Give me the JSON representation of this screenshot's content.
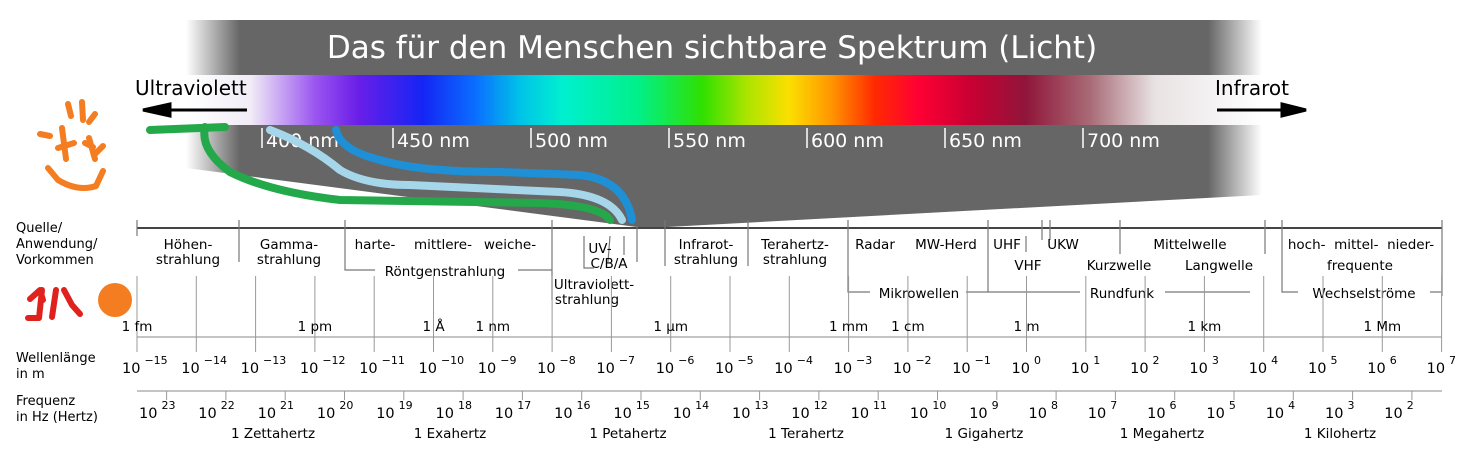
{
  "banner": {
    "title": "Das für den Menschen sichtbare Spektrum (Licht)"
  },
  "ends": {
    "left": "Ultraviolett",
    "right": "Infrarot"
  },
  "nm_ticks": [
    "400 nm",
    "450 nm",
    "500 nm",
    "550 nm",
    "600 nm",
    "650 nm",
    "700 nm"
  ],
  "row_labels": {
    "source": [
      "Quelle/",
      "Anwendung/",
      "Vorkommen"
    ],
    "wavelength": [
      "Wellenlänge",
      "in m"
    ],
    "frequency": [
      "Frequenz",
      "in Hz (Hertz)"
    ]
  },
  "sources": {
    "hoehen": [
      "Höhen-",
      "strahlung"
    ],
    "gamma": [
      "Gamma-",
      "strahlung"
    ],
    "harte": "harte-",
    "mittlere": "mittlere-",
    "weiche": "weiche-",
    "roentgen": "Röntgenstrahlung",
    "uvcba": [
      "UV-",
      "C/B/A"
    ],
    "uv": [
      "Ultraviolett-",
      "strahlung"
    ],
    "ir": [
      "Infrarot-",
      "strahlung"
    ],
    "thz": [
      "Terahertz-",
      "strahlung"
    ],
    "radar": "Radar",
    "mwherd": "MW-Herd",
    "mikro": "Mikrowellen",
    "uhf": "UHF",
    "vhf": "VHF",
    "ukw": "UKW",
    "kurz": "Kurzwelle",
    "mittel": "Mittelwelle",
    "lang": "Langwelle",
    "rundfunk": "Rundfunk",
    "hmn": "hoch-  mittel-  nieder-",
    "frequente": "frequente",
    "wechsel": "Wechselströme"
  },
  "length_units": [
    "1 fm",
    "1 pm",
    "1 Å",
    "1 nm",
    "1 µm",
    "1 mm",
    "1 cm",
    "1 m",
    "1 km",
    "1 Mm"
  ],
  "wavelength_exponents": [
    "−15",
    "−14",
    "−13",
    "−12",
    "−11",
    "−10",
    "−9",
    "−8",
    "−7",
    "−6",
    "−5",
    "−4",
    "−3",
    "−2",
    "−1",
    "0",
    "1",
    "2",
    "3",
    "4",
    "5",
    "6",
    "7"
  ],
  "frequency_exponents": [
    "23",
    "22",
    "21",
    "20",
    "19",
    "18",
    "17",
    "16",
    "15",
    "14",
    "13",
    "12",
    "11",
    "10",
    "9",
    "8",
    "7",
    "6",
    "5",
    "4",
    "3",
    "2"
  ],
  "base": "10",
  "frequency_units": [
    "1 Zettahertz",
    "1 Exahertz",
    "1 Petahertz",
    "1 Terahertz",
    "1 Gigahertz",
    "1 Megahertz",
    "1 Kilohertz"
  ],
  "colors": {
    "banner": "#666666",
    "scribble_orange": "#f37d20",
    "scribble_red": "#e0221e",
    "curve_green": "#23a84a",
    "curve_lightblue": "#a6d6ea",
    "curve_blue": "#1f8fd6"
  }
}
